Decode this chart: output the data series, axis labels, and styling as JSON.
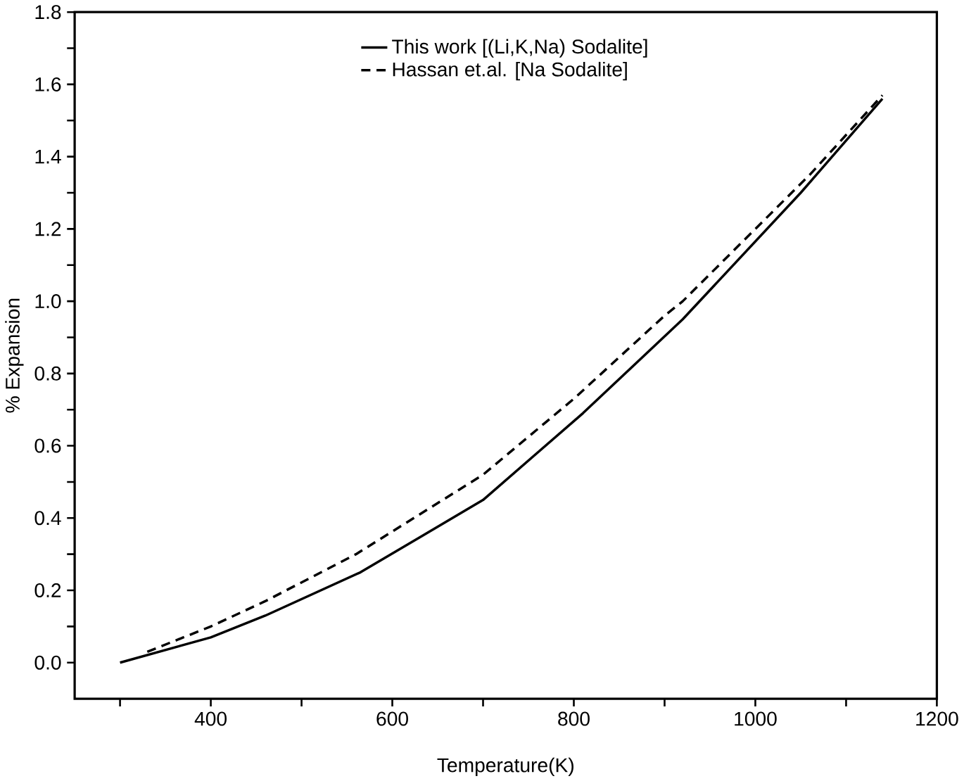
{
  "chart_data": {
    "type": "line",
    "xlabel": "Temperature(K)",
    "ylabel": "% Expansion",
    "legend": "top",
    "xlim": [
      250,
      1200
    ],
    "ylim": [
      -0.1,
      1.8
    ],
    "xticks": [
      {
        "value": 300,
        "label": null
      },
      400,
      {
        "value": 500,
        "label": null
      },
      600,
      {
        "value": 700,
        "label": null
      },
      800,
      {
        "value": 900,
        "label": null
      },
      1000,
      {
        "value": 1100,
        "label": null
      },
      1200
    ],
    "yticks": [
      {
        "value": 0,
        "label": "0.0"
      },
      {
        "value": 0.1,
        "label": null
      },
      {
        "value": 0.2,
        "label": "0.2"
      },
      {
        "value": 0.3,
        "label": null
      },
      {
        "value": 0.4,
        "label": "0.4"
      },
      {
        "value": 0.5,
        "label": null
      },
      {
        "value": 0.6,
        "label": "0.6"
      },
      {
        "value": 0.7,
        "label": null
      },
      {
        "value": 0.8,
        "label": "0.8"
      },
      {
        "value": 0.9,
        "label": null
      },
      {
        "value": 1.0,
        "label": "1.0"
      },
      {
        "value": 1.1,
        "label": null
      },
      {
        "value": 1.2,
        "label": "1.2"
      },
      {
        "value": 1.3,
        "label": null
      },
      {
        "value": 1.4,
        "label": "1.4"
      },
      {
        "value": 1.5,
        "label": null
      },
      {
        "value": 1.6,
        "label": "1.6"
      },
      {
        "value": 1.7,
        "label": null
      },
      {
        "value": 1.8,
        "label": "1.8"
      }
    ],
    "series": [
      {
        "name": "This work [(Li,K,Na) Sodalite]",
        "color": "#000000",
        "line_style": "solid",
        "x": [
          300,
          400,
          460,
          565,
          700,
          810,
          920,
          1050,
          1140
        ],
        "values": [
          0.0,
          0.07,
          0.13,
          0.25,
          0.45,
          0.69,
          0.95,
          1.3,
          1.56
        ]
      },
      {
        "name": "Hassan et.al. [Na Sodalite]",
        "color": "#000000",
        "line_style": "dashed",
        "x": [
          330,
          400,
          460,
          560,
          700,
          800,
          900,
          920,
          1000,
          1060,
          1140
        ],
        "values": [
          0.03,
          0.1,
          0.17,
          0.3,
          0.52,
          0.73,
          0.96,
          1.0,
          1.2,
          1.35,
          1.57
        ]
      }
    ]
  }
}
